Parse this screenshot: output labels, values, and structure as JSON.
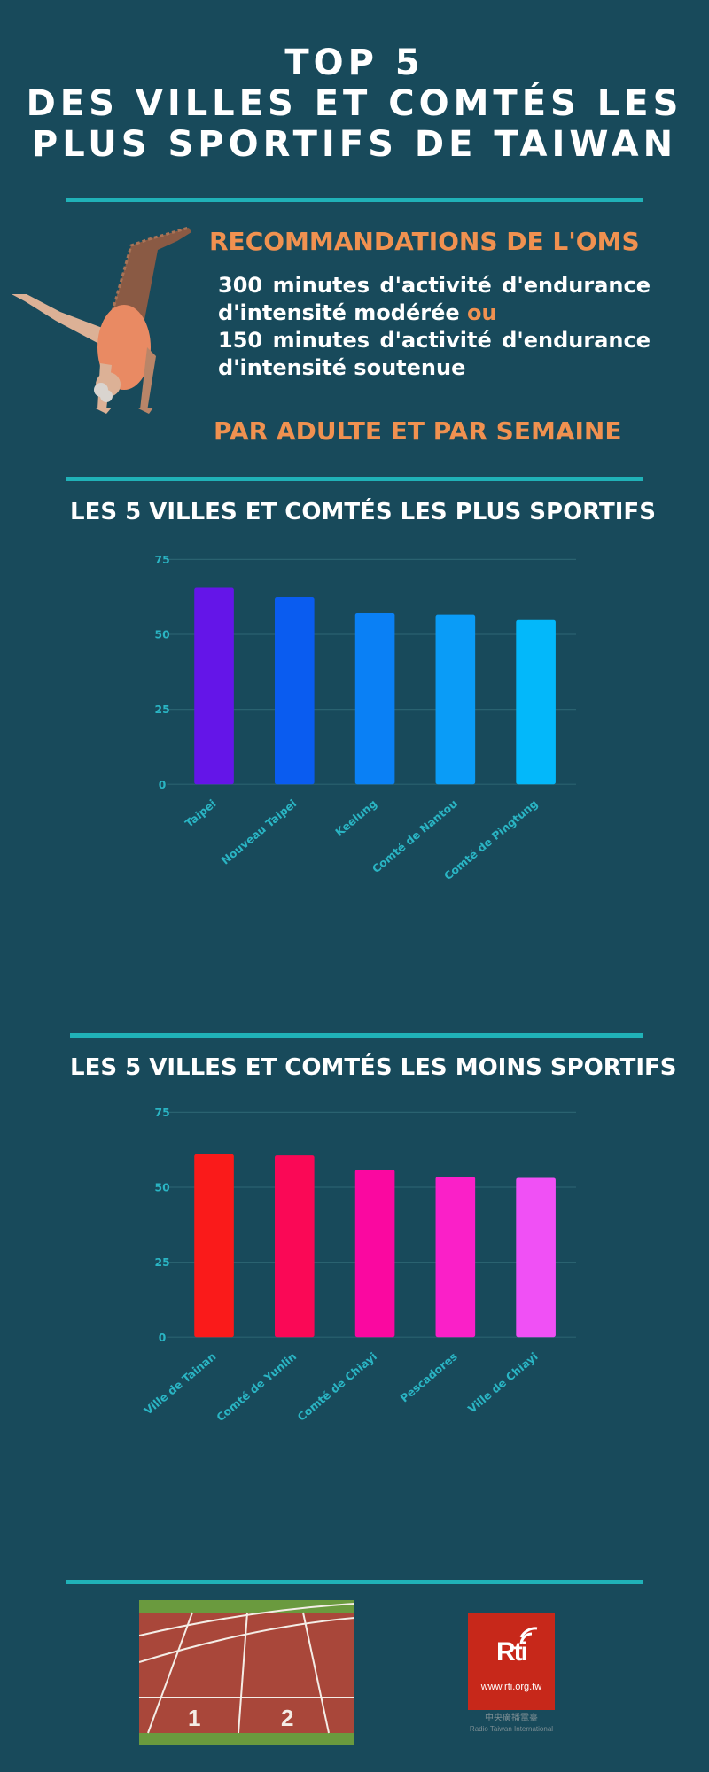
{
  "title": {
    "line1": "TOP 5",
    "line2": "DES VILLES ET COMTÉS LES",
    "line3": "PLUS SPORTIFS DE TAIWAN"
  },
  "recommendations": {
    "title": "RECOMMANDATIONS DE L'OMS",
    "line1": "300 minutes d'activité d'endurance",
    "line2_text": "d'intensité modérée ",
    "line2_or": "ou",
    "line3": "150 minutes d'activité d'endurance",
    "line4": "d'intensité soutenue",
    "footer": "PAR ADULTE ET PAR SEMAINE"
  },
  "chart_data": [
    {
      "type": "bar",
      "title": "LES 5 VILLES ET COMTÉS LES PLUS SPORTIFS",
      "categories": [
        "Taipei",
        "Nouveau Taipei",
        "Keelung",
        "Comté de Nantou",
        "Comté de Pingtung"
      ],
      "values": [
        65.5,
        62.4,
        57.1,
        56.6,
        54.8
      ],
      "colors": [
        "#6415e8",
        "#0a5cf0",
        "#0a80f5",
        "#0a9cf7",
        "#03b8fa"
      ],
      "ylim": [
        0,
        75
      ],
      "yticks": [
        0,
        25,
        50,
        75
      ],
      "grid": true
    },
    {
      "type": "bar",
      "title": "LES 5 VILLES ET COMTÉS LES MOINS SPORTIFS",
      "categories": [
        "Ville de Tainan",
        "Comté de Yunlin",
        "Comté de Chiayi",
        "Pescadores",
        "Ville de Chiayi"
      ],
      "values": [
        61.0,
        60.6,
        55.9,
        53.5,
        53.1
      ],
      "colors": [
        "#fa1a1a",
        "#fa0856",
        "#fa08a0",
        "#fa20c8",
        "#f050f5"
      ],
      "ylim": [
        0,
        75
      ],
      "yticks": [
        0,
        25,
        50,
        75
      ],
      "grid": true
    }
  ],
  "footer": {
    "logo_text": "Rti",
    "logo_url": "www.rti.org.tw",
    "logo_sub1": "中央廣播電臺",
    "logo_sub2": "Radio Taiwan International",
    "track_numbers": [
      "1",
      "2"
    ]
  },
  "colors": {
    "background": "#184a5b",
    "accent": "#20b2b8",
    "orange": "#f09150",
    "axis_text": "#2ab5c4"
  }
}
